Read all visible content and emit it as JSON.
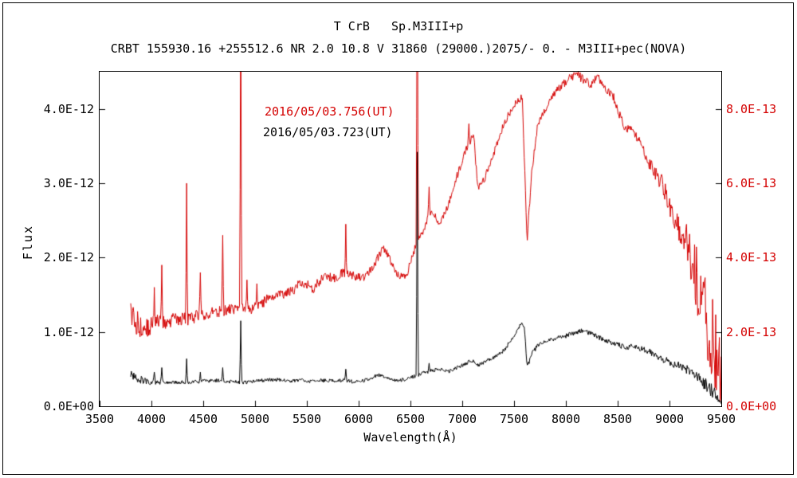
{
  "chart_data": {
    "type": "line",
    "title": "T CrB   Sp.M3III+p",
    "subtitle": "CRBT 155930.16 +255512.6 NR 2.0 10.8 V 31860 (29000.)2075/- 0. - M3III+pec(NOVA)",
    "xlabel": "Wavelength(Å)",
    "ylabel": "Flux",
    "grid": false,
    "legend_position": "upper-left-inside",
    "x_range": [
      3500,
      9500
    ],
    "x_ticks": [
      3500,
      4000,
      4500,
      5000,
      5500,
      6000,
      6500,
      7000,
      7500,
      8000,
      8500,
      9000,
      9500
    ],
    "left_axis": {
      "ticks": [
        "0.0E+00",
        "1.0E-12",
        "2.0E-12",
        "3.0E-12",
        "4.0E-12"
      ],
      "tick_values": [
        0,
        1,
        2,
        3,
        4
      ],
      "max": 4.5,
      "unit_scale": "1e-12",
      "color": "#000000"
    },
    "right_axis": {
      "ticks": [
        "0.0E+00",
        "2.0E-13",
        "4.0E-13",
        "6.0E-13",
        "8.0E-13"
      ],
      "tick_values": [
        0,
        2,
        4,
        6,
        8
      ],
      "max": 9.0,
      "unit_scale": "1e-13",
      "color": "#d40000"
    },
    "series": [
      {
        "name": "2016/05/03.756(UT)",
        "color": "#d40000",
        "axis": "right",
        "anchors": [
          [
            3800,
            2.6,
            0.5
          ],
          [
            3840,
            2.3,
            0.4
          ],
          [
            3900,
            2.1,
            0.3
          ],
          [
            3980,
            2.15,
            0.25
          ],
          [
            4060,
            2.25,
            0.22
          ],
          [
            4160,
            2.3,
            0.2
          ],
          [
            4260,
            2.35,
            0.18
          ],
          [
            4360,
            2.35,
            0.18
          ],
          [
            4460,
            2.45,
            0.16
          ],
          [
            4560,
            2.5,
            0.15
          ],
          [
            4660,
            2.55,
            0.15
          ],
          [
            4760,
            2.6,
            0.15
          ],
          [
            4860,
            2.65,
            0.15
          ],
          [
            4960,
            2.6,
            0.14
          ],
          [
            5060,
            2.75,
            0.14
          ],
          [
            5160,
            3.0,
            0.14
          ],
          [
            5260,
            3.0,
            0.14
          ],
          [
            5360,
            3.1,
            0.14
          ],
          [
            5460,
            3.35,
            0.14
          ],
          [
            5560,
            3.15,
            0.13
          ],
          [
            5660,
            3.5,
            0.13
          ],
          [
            5760,
            3.45,
            0.13
          ],
          [
            5860,
            3.6,
            0.13
          ],
          [
            5960,
            3.5,
            0.12
          ],
          [
            6060,
            3.45,
            0.12
          ],
          [
            6160,
            3.85,
            0.12
          ],
          [
            6240,
            4.3,
            0.12
          ],
          [
            6310,
            3.9,
            0.12
          ],
          [
            6390,
            3.5,
            0.11
          ],
          [
            6460,
            3.5,
            0.11
          ],
          [
            6530,
            4.15,
            0.11
          ],
          [
            6610,
            4.65,
            0.11
          ],
          [
            6700,
            5.3,
            0.11
          ],
          [
            6780,
            4.9,
            0.1
          ],
          [
            6860,
            5.35,
            0.1
          ],
          [
            6950,
            6.2,
            0.1
          ],
          [
            7050,
            7.0,
            0.1
          ],
          [
            7110,
            7.3,
            0.1
          ],
          [
            7150,
            5.9,
            0.1
          ],
          [
            7220,
            6.15,
            0.1
          ],
          [
            7310,
            6.85,
            0.1
          ],
          [
            7400,
            7.6,
            0.1
          ],
          [
            7500,
            8.1,
            0.1
          ],
          [
            7580,
            8.35,
            0.1
          ],
          [
            7625,
            4.4,
            0.1
          ],
          [
            7670,
            6.3,
            0.1
          ],
          [
            7730,
            7.6,
            0.1
          ],
          [
            7810,
            8.0,
            0.1
          ],
          [
            7910,
            8.5,
            0.1
          ],
          [
            8010,
            8.75,
            0.12
          ],
          [
            8090,
            8.95,
            0.12
          ],
          [
            8170,
            8.8,
            0.12
          ],
          [
            8240,
            8.65,
            0.12
          ],
          [
            8310,
            8.85,
            0.12
          ],
          [
            8390,
            8.5,
            0.12
          ],
          [
            8450,
            8.4,
            0.12
          ],
          [
            8510,
            7.9,
            0.12
          ],
          [
            8570,
            7.5,
            0.13
          ],
          [
            8640,
            7.4,
            0.14
          ],
          [
            8710,
            7.1,
            0.15
          ],
          [
            8790,
            6.6,
            0.16
          ],
          [
            8860,
            6.3,
            0.2
          ],
          [
            8930,
            6.0,
            0.25
          ],
          [
            9010,
            5.3,
            0.3
          ],
          [
            9090,
            4.85,
            0.4
          ],
          [
            9160,
            4.4,
            0.55
          ],
          [
            9230,
            3.8,
            0.8
          ],
          [
            9300,
            3.0,
            1.0
          ],
          [
            9360,
            2.4,
            1.2
          ],
          [
            9430,
            1.7,
            1.2
          ],
          [
            9500,
            0.9,
            0.9
          ]
        ],
        "spikes": [
          [
            4026,
            3.2
          ],
          [
            4101,
            3.8
          ],
          [
            4340,
            6.0
          ],
          [
            4471,
            3.6
          ],
          [
            4686,
            4.6
          ],
          [
            4861,
            12.0
          ],
          [
            4922,
            3.4
          ],
          [
            5016,
            3.3
          ],
          [
            5876,
            4.9
          ],
          [
            6563,
            14.0
          ],
          [
            6678,
            5.9
          ],
          [
            7065,
            7.6
          ]
        ]
      },
      {
        "name": "2016/05/03.723(UT)",
        "color": "#000000",
        "axis": "left",
        "anchors": [
          [
            3800,
            0.42,
            0.1
          ],
          [
            3850,
            0.38,
            0.07
          ],
          [
            3910,
            0.35,
            0.05
          ],
          [
            3990,
            0.33,
            0.04
          ],
          [
            4090,
            0.32,
            0.025
          ],
          [
            4200,
            0.33,
            0.025
          ],
          [
            4310,
            0.32,
            0.025
          ],
          [
            4420,
            0.33,
            0.025
          ],
          [
            4530,
            0.34,
            0.025
          ],
          [
            4640,
            0.35,
            0.025
          ],
          [
            4750,
            0.33,
            0.025
          ],
          [
            4860,
            0.32,
            0.025
          ],
          [
            4970,
            0.33,
            0.025
          ],
          [
            5080,
            0.35,
            0.025
          ],
          [
            5190,
            0.36,
            0.025
          ],
          [
            5300,
            0.34,
            0.025
          ],
          [
            5410,
            0.35,
            0.025
          ],
          [
            5520,
            0.34,
            0.025
          ],
          [
            5630,
            0.35,
            0.025
          ],
          [
            5740,
            0.34,
            0.025
          ],
          [
            5850,
            0.35,
            0.025
          ],
          [
            5960,
            0.33,
            0.025
          ],
          [
            6070,
            0.35,
            0.025
          ],
          [
            6180,
            0.42,
            0.025
          ],
          [
            6260,
            0.39,
            0.025
          ],
          [
            6350,
            0.35,
            0.025
          ],
          [
            6450,
            0.36,
            0.025
          ],
          [
            6530,
            0.4,
            0.025
          ],
          [
            6610,
            0.44,
            0.025
          ],
          [
            6700,
            0.48,
            0.025
          ],
          [
            6790,
            0.5,
            0.025
          ],
          [
            6870,
            0.47,
            0.025
          ],
          [
            6950,
            0.52,
            0.025
          ],
          [
            7050,
            0.58,
            0.025
          ],
          [
            7110,
            0.62,
            0.025
          ],
          [
            7150,
            0.55,
            0.025
          ],
          [
            7220,
            0.6,
            0.025
          ],
          [
            7310,
            0.66,
            0.025
          ],
          [
            7400,
            0.75,
            0.03
          ],
          [
            7500,
            0.95,
            0.03
          ],
          [
            7565,
            1.12,
            0.03
          ],
          [
            7600,
            1.08,
            0.03
          ],
          [
            7625,
            0.52,
            0.03
          ],
          [
            7670,
            0.7,
            0.03
          ],
          [
            7730,
            0.82,
            0.03
          ],
          [
            7810,
            0.87,
            0.03
          ],
          [
            7910,
            0.92,
            0.03
          ],
          [
            8010,
            0.95,
            0.03
          ],
          [
            8110,
            1.0,
            0.03
          ],
          [
            8160,
            1.02,
            0.03
          ],
          [
            8260,
            0.97,
            0.03
          ],
          [
            8360,
            0.9,
            0.035
          ],
          [
            8460,
            0.84,
            0.035
          ],
          [
            8560,
            0.8,
            0.04
          ],
          [
            8660,
            0.8,
            0.04
          ],
          [
            8760,
            0.76,
            0.04
          ],
          [
            8860,
            0.7,
            0.045
          ],
          [
            8960,
            0.62,
            0.05
          ],
          [
            9060,
            0.56,
            0.055
          ],
          [
            9160,
            0.5,
            0.06
          ],
          [
            9260,
            0.4,
            0.08
          ],
          [
            9360,
            0.28,
            0.09
          ],
          [
            9450,
            0.15,
            0.09
          ],
          [
            9500,
            0.06,
            0.05
          ]
        ],
        "spikes": [
          [
            4026,
            0.46
          ],
          [
            4101,
            0.52
          ],
          [
            4340,
            0.64
          ],
          [
            4471,
            0.46
          ],
          [
            4686,
            0.52
          ],
          [
            4861,
            1.15
          ],
          [
            5876,
            0.5
          ],
          [
            6563,
            3.42
          ],
          [
            6678,
            0.58
          ],
          [
            7065,
            0.62
          ]
        ]
      }
    ]
  }
}
